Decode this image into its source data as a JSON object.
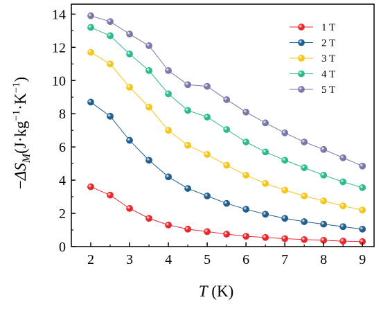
{
  "chart_data": {
    "type": "line",
    "xlabel_italic": "T",
    "xlabel_rest": " (K)",
    "ylabel_prefix": "−",
    "ylabel_italic": "ΔS",
    "ylabel_sub": "M",
    "ylabel_unit_a": "(J·kg",
    "ylabel_unit_sup1": "−1",
    "ylabel_unit_b": "·K",
    "ylabel_unit_sup2": "−1",
    "ylabel_unit_c": ")",
    "xlim": [
      1.5,
      9.3
    ],
    "ylim": [
      0,
      14.6
    ],
    "xticks": [
      2,
      3,
      4,
      5,
      6,
      7,
      8,
      9
    ],
    "yticks": [
      0,
      2,
      4,
      6,
      8,
      10,
      12,
      14
    ],
    "legend_position": "top-right",
    "x": [
      2,
      2.5,
      3,
      3.5,
      4,
      4.5,
      5,
      5.5,
      6,
      6.5,
      7,
      7.5,
      8,
      8.5,
      9
    ],
    "series": [
      {
        "name": "1 T",
        "color": "#e8262b",
        "values": [
          3.6,
          3.1,
          2.3,
          1.7,
          1.3,
          1.05,
          0.9,
          0.75,
          0.62,
          0.55,
          0.48,
          0.42,
          0.38,
          0.33,
          0.3
        ]
      },
      {
        "name": "2 T",
        "color": "#1f5e8e",
        "values": [
          8.7,
          7.85,
          6.4,
          5.2,
          4.2,
          3.5,
          3.05,
          2.6,
          2.25,
          1.95,
          1.7,
          1.5,
          1.35,
          1.2,
          1.05
        ]
      },
      {
        "name": "3 T",
        "color": "#f5c518",
        "values": [
          11.7,
          11.0,
          9.6,
          8.4,
          7.0,
          6.1,
          5.55,
          4.9,
          4.3,
          3.8,
          3.4,
          3.05,
          2.75,
          2.45,
          2.2
        ]
      },
      {
        "name": "4 T",
        "color": "#29bb8a",
        "values": [
          13.2,
          12.7,
          11.6,
          10.6,
          9.2,
          8.2,
          7.8,
          7.05,
          6.3,
          5.7,
          5.2,
          4.75,
          4.3,
          3.9,
          3.55
        ]
      },
      {
        "name": "5 T",
        "color": "#7878a8",
        "values": [
          13.9,
          13.55,
          12.8,
          12.1,
          10.6,
          9.75,
          9.65,
          8.85,
          8.1,
          7.45,
          6.85,
          6.3,
          5.85,
          5.35,
          4.85
        ]
      }
    ]
  }
}
